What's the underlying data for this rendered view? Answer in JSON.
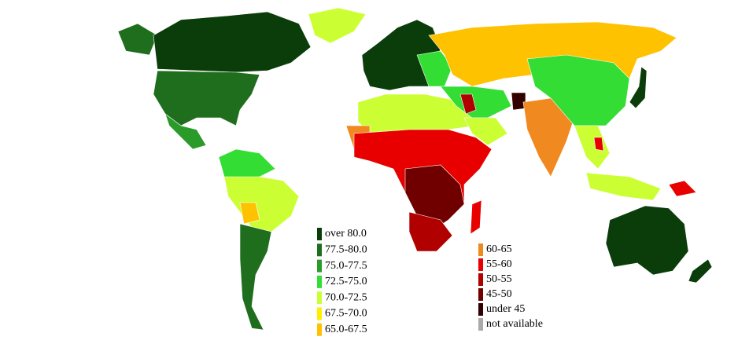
{
  "legend": {
    "left": [
      {
        "label": "over 80.0",
        "color": "#0b3d0b"
      },
      {
        "label": "77.5-80.0",
        "color": "#1e6e1e"
      },
      {
        "label": "75.0-77.5",
        "color": "#2a9a2a"
      },
      {
        "label": "72.5-75.0",
        "color": "#33dd33"
      },
      {
        "label": "70.0-72.5",
        "color": "#ccff33"
      },
      {
        "label": "67.5-70.0",
        "color": "#ffee00"
      },
      {
        "label": "65.0-67.5",
        "color": "#ffc200"
      }
    ],
    "right": [
      {
        "label": "60-65",
        "color": "#f08a20"
      },
      {
        "label": "55-60",
        "color": "#e80000"
      },
      {
        "label": "50-55",
        "color": "#b00000"
      },
      {
        "label": "45-50",
        "color": "#700000"
      },
      {
        "label": "under 45",
        "color": "#330000"
      },
      {
        "label": "not available",
        "color": "#aaaaaa"
      }
    ]
  }
}
